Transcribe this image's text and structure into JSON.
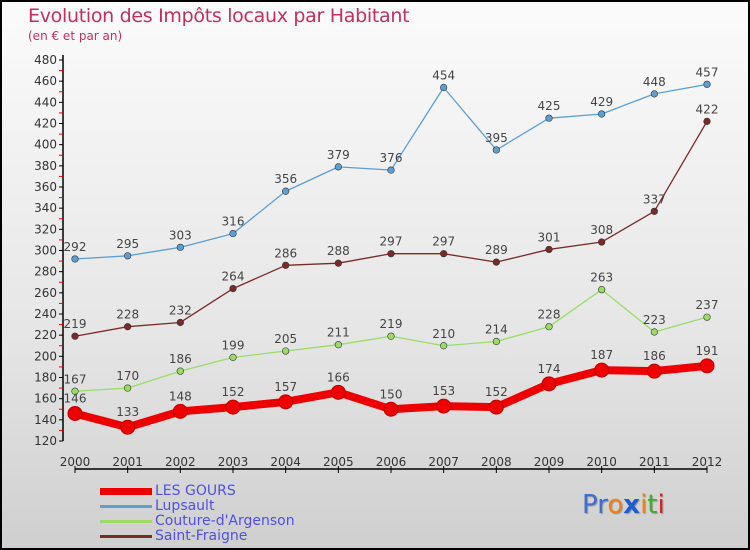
{
  "title": "Evolution des Impôts locaux par Habitant",
  "subtitle": "(en € et par an)",
  "logo": "Proxiti",
  "chart_data": {
    "type": "line",
    "title": "Evolution des Impôts locaux par Habitant",
    "subtitle": "(en € et par an)",
    "xlabel": "",
    "ylabel": "",
    "x": [
      "2000",
      "2001",
      "2002",
      "2003",
      "2004",
      "2005",
      "2006",
      "2007",
      "2008",
      "2009",
      "2010",
      "2011",
      "2012"
    ],
    "ylim": [
      120,
      480
    ],
    "yticks": [
      120,
      140,
      160,
      180,
      200,
      220,
      240,
      260,
      280,
      300,
      320,
      340,
      360,
      380,
      400,
      420,
      440,
      460,
      480
    ],
    "legend_position": "bottom-left",
    "series": [
      {
        "name": "LES GOURS",
        "color": "#ee0000",
        "values": [
          146,
          133,
          148,
          152,
          157,
          166,
          150,
          153,
          152,
          174,
          187,
          186,
          191
        ]
      },
      {
        "name": "Lupsault",
        "color": "#5c9fd0",
        "values": [
          292,
          295,
          303,
          316,
          356,
          379,
          376,
          454,
          395,
          425,
          429,
          448,
          457
        ]
      },
      {
        "name": "Couture-d'Argenson",
        "color": "#99dd66",
        "values": [
          167,
          170,
          186,
          199,
          205,
          211,
          219,
          210,
          214,
          228,
          263,
          223,
          237
        ]
      },
      {
        "name": "Saint-Fraigne",
        "color": "#7a2a2a",
        "values": [
          219,
          228,
          232,
          264,
          286,
          288,
          297,
          297,
          289,
          301,
          308,
          337,
          422
        ]
      }
    ]
  }
}
